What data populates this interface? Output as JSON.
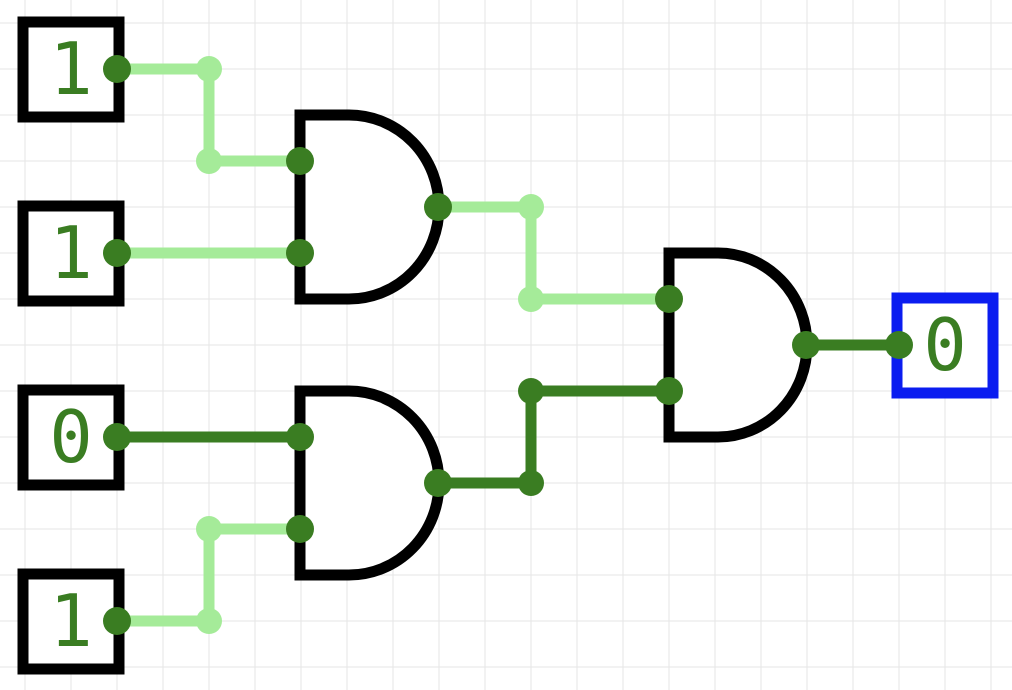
{
  "colors": {
    "background": "#ffffff",
    "grid": "#e6e6e6",
    "wire_on": "#a5eb99",
    "wire_off": "#3a7d22",
    "pin": "#3a7d22",
    "gate_stroke": "#000000",
    "input_border": "#000000",
    "output_border": "#0b1df0",
    "value_text": "#3a7d22"
  },
  "inputs": [
    {
      "id": "in1",
      "value": "1"
    },
    {
      "id": "in2",
      "value": "1"
    },
    {
      "id": "in3",
      "value": "0"
    },
    {
      "id": "in4",
      "value": "1"
    }
  ],
  "gates": [
    {
      "id": "and1",
      "type": "AND"
    },
    {
      "id": "and2",
      "type": "AND"
    },
    {
      "id": "and3",
      "type": "AND"
    }
  ],
  "output": {
    "id": "out1",
    "value": "0"
  }
}
